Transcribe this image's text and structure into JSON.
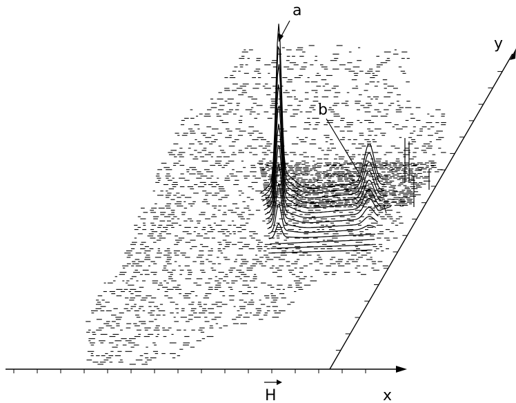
{
  "labels": {
    "peak_a": "a",
    "peak_b": "b",
    "axis_x": "x",
    "axis_y": "y",
    "field": "H"
  }
}
